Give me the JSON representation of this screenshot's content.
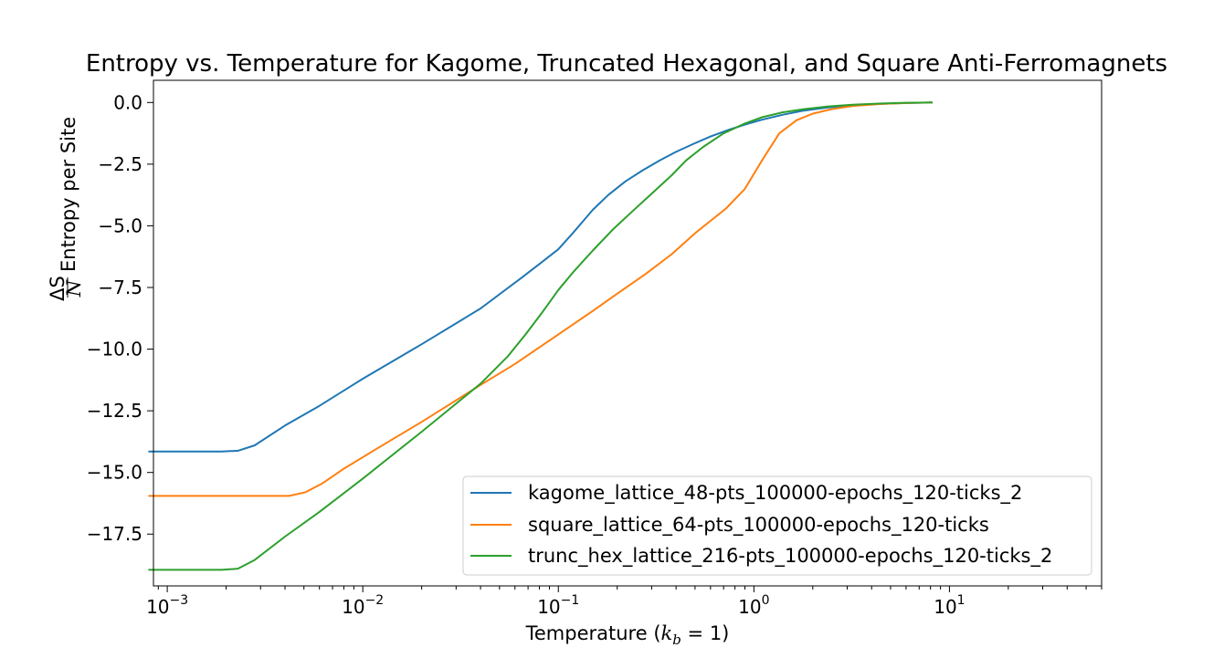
{
  "chart_data": {
    "type": "line",
    "title": "Entropy vs. Temperature for Kagome, Truncated Hexagonal, and Square Anti-Ferromagnets",
    "xlabel": {
      "prefix": "Temperature (",
      "k": "k",
      "sub": "b",
      "rest": " = 1)"
    },
    "ylabel": {
      "frac_num": "ΔS",
      "frac_den": "N",
      "text": "Entropy per Site"
    },
    "x_scale": "log",
    "xlim": [
      0.00085,
      60
    ],
    "ylim": [
      -19.6,
      0.9
    ],
    "x_ticks": [
      {
        "value": 0.001,
        "base": "10",
        "exp": "−3"
      },
      {
        "value": 0.01,
        "base": "10",
        "exp": "−2"
      },
      {
        "value": 0.1,
        "base": "10",
        "exp": "−1"
      },
      {
        "value": 1,
        "base": "10",
        "exp": "0"
      },
      {
        "value": 10,
        "base": "10",
        "exp": "1"
      }
    ],
    "y_ticks": [
      {
        "value": 0,
        "label": "0.0"
      },
      {
        "value": -2.5,
        "label": "−2.5"
      },
      {
        "value": -5,
        "label": "−5.0"
      },
      {
        "value": -7.5,
        "label": "−7.5"
      },
      {
        "value": -10,
        "label": "−10.0"
      },
      {
        "value": -12.5,
        "label": "−12.5"
      },
      {
        "value": -15,
        "label": "−15.0"
      },
      {
        "value": -17.5,
        "label": "−17.5"
      }
    ],
    "grid": false,
    "legend_position": "lower-right",
    "series": [
      {
        "name": "kagome_lattice_48-pts_100000-epochs_120-ticks_2",
        "color": "#1f77b4",
        "points": [
          [
            0.0008,
            -14.15
          ],
          [
            0.0019,
            -14.15
          ],
          [
            0.0023,
            -14.12
          ],
          [
            0.0028,
            -13.9
          ],
          [
            0.004,
            -13.1
          ],
          [
            0.006,
            -12.3
          ],
          [
            0.01,
            -11.2
          ],
          [
            0.02,
            -9.8
          ],
          [
            0.04,
            -8.35
          ],
          [
            0.065,
            -7.1
          ],
          [
            0.08,
            -6.55
          ],
          [
            0.1,
            -5.95
          ],
          [
            0.12,
            -5.25
          ],
          [
            0.15,
            -4.35
          ],
          [
            0.18,
            -3.75
          ],
          [
            0.22,
            -3.2
          ],
          [
            0.27,
            -2.75
          ],
          [
            0.33,
            -2.35
          ],
          [
            0.4,
            -2.0
          ],
          [
            0.5,
            -1.65
          ],
          [
            0.6,
            -1.38
          ],
          [
            0.75,
            -1.1
          ],
          [
            0.9,
            -0.9
          ],
          [
            1.1,
            -0.7
          ],
          [
            1.4,
            -0.5
          ],
          [
            1.8,
            -0.33
          ],
          [
            2.4,
            -0.2
          ],
          [
            3.2,
            -0.11
          ],
          [
            4.5,
            -0.05
          ],
          [
            6,
            -0.02
          ],
          [
            8.2,
            0.0
          ]
        ]
      },
      {
        "name": "square_lattice_64-pts_100000-epochs_120-ticks",
        "color": "#ff7f0e",
        "points": [
          [
            0.0008,
            -15.95
          ],
          [
            0.0042,
            -15.95
          ],
          [
            0.0051,
            -15.8
          ],
          [
            0.0062,
            -15.45
          ],
          [
            0.008,
            -14.85
          ],
          [
            0.012,
            -14.0
          ],
          [
            0.02,
            -12.95
          ],
          [
            0.04,
            -11.45
          ],
          [
            0.06,
            -10.6
          ],
          [
            0.1,
            -9.4
          ],
          [
            0.15,
            -8.45
          ],
          [
            0.2,
            -7.75
          ],
          [
            0.28,
            -6.95
          ],
          [
            0.38,
            -6.15
          ],
          [
            0.5,
            -5.3
          ],
          [
            0.6,
            -4.8
          ],
          [
            0.72,
            -4.3
          ],
          [
            0.9,
            -3.5
          ],
          [
            1.1,
            -2.35
          ],
          [
            1.35,
            -1.25
          ],
          [
            1.65,
            -0.72
          ],
          [
            2.0,
            -0.45
          ],
          [
            2.5,
            -0.27
          ],
          [
            3.2,
            -0.14
          ],
          [
            4.5,
            -0.06
          ],
          [
            6,
            -0.02
          ],
          [
            8.2,
            0.0
          ]
        ]
      },
      {
        "name": "trunc_hex_lattice_216-pts_100000-epochs_120-ticks_2",
        "color": "#2ca02c",
        "points": [
          [
            0.0008,
            -18.95
          ],
          [
            0.0019,
            -18.95
          ],
          [
            0.0023,
            -18.9
          ],
          [
            0.0028,
            -18.55
          ],
          [
            0.004,
            -17.6
          ],
          [
            0.006,
            -16.6
          ],
          [
            0.01,
            -15.25
          ],
          [
            0.02,
            -13.35
          ],
          [
            0.04,
            -11.4
          ],
          [
            0.055,
            -10.3
          ],
          [
            0.068,
            -9.4
          ],
          [
            0.082,
            -8.55
          ],
          [
            0.1,
            -7.6
          ],
          [
            0.12,
            -6.85
          ],
          [
            0.15,
            -6.0
          ],
          [
            0.19,
            -5.15
          ],
          [
            0.24,
            -4.4
          ],
          [
            0.3,
            -3.7
          ],
          [
            0.38,
            -2.95
          ],
          [
            0.45,
            -2.35
          ],
          [
            0.55,
            -1.8
          ],
          [
            0.7,
            -1.25
          ],
          [
            0.9,
            -0.85
          ],
          [
            1.1,
            -0.6
          ],
          [
            1.4,
            -0.4
          ],
          [
            1.8,
            -0.27
          ],
          [
            2.4,
            -0.16
          ],
          [
            3.2,
            -0.09
          ],
          [
            4.5,
            -0.04
          ],
          [
            6,
            -0.01
          ],
          [
            8.2,
            0.0
          ]
        ]
      }
    ]
  }
}
